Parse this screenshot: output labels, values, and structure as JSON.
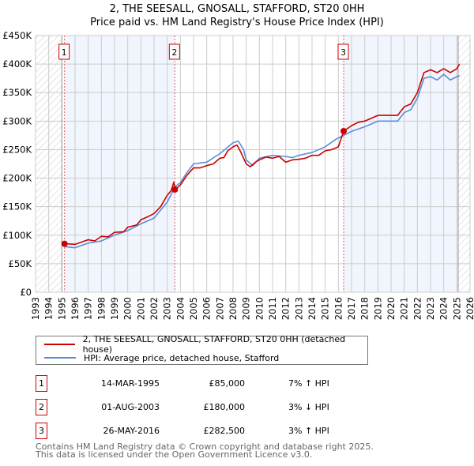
{
  "chart_data": {
    "type": "line",
    "title": "2, THE SEESALL, GNOSALL, STAFFORD, ST20 0HH",
    "subtitle": "Price paid vs. HM Land Registry's House Price Index (HPI)",
    "xlim": [
      1993,
      2026
    ],
    "ylim": [
      0,
      450000
    ],
    "x_ticks": [
      "1993",
      "1994",
      "1995",
      "1996",
      "1997",
      "1998",
      "1999",
      "2000",
      "2001",
      "2002",
      "2003",
      "2004",
      "2005",
      "2006",
      "2007",
      "2008",
      "2009",
      "2010",
      "2011",
      "2012",
      "2013",
      "2014",
      "2015",
      "2016",
      "2017",
      "2018",
      "2019",
      "2020",
      "2021",
      "2022",
      "2023",
      "2024",
      "2025",
      "2026"
    ],
    "y_ticks": [
      {
        "v": 0,
        "label": "£0"
      },
      {
        "v": 50000,
        "label": "£50K"
      },
      {
        "v": 100000,
        "label": "£100K"
      },
      {
        "v": 150000,
        "label": "£150K"
      },
      {
        "v": 200000,
        "label": "£200K"
      },
      {
        "v": 250000,
        "label": "£250K"
      },
      {
        "v": 300000,
        "label": "£300K"
      },
      {
        "v": 350000,
        "label": "£350K"
      },
      {
        "v": 400000,
        "label": "£400K"
      },
      {
        "v": 450000,
        "label": "£450K"
      }
    ],
    "grid": true,
    "data_range": [
      1995.0,
      2025.1
    ],
    "series": [
      {
        "name": "2, THE SEESALL, GNOSALL, STAFFORD, ST20 0HH (detached house)",
        "color": "#cc0000",
        "points": [
          [
            1995.2,
            85000
          ],
          [
            1996,
            84000
          ],
          [
            1997,
            92000
          ],
          [
            1997.5,
            90000
          ],
          [
            1998,
            98000
          ],
          [
            1998.5,
            97000
          ],
          [
            1999,
            105000
          ],
          [
            1999.7,
            106000
          ],
          [
            2000,
            114000
          ],
          [
            2000.7,
            118000
          ],
          [
            2001,
            127000
          ],
          [
            2001.5,
            132000
          ],
          [
            2002,
            138000
          ],
          [
            2002.5,
            150000
          ],
          [
            2003,
            170000
          ],
          [
            2003.3,
            178000
          ],
          [
            2003.5,
            193000
          ],
          [
            2003.6,
            180000
          ],
          [
            2004,
            188000
          ],
          [
            2004.5,
            205000
          ],
          [
            2005,
            218000
          ],
          [
            2005.5,
            218000
          ],
          [
            2006,
            222000
          ],
          [
            2006.5,
            225000
          ],
          [
            2007,
            235000
          ],
          [
            2007.3,
            236000
          ],
          [
            2007.6,
            248000
          ],
          [
            2008,
            255000
          ],
          [
            2008.3,
            258000
          ],
          [
            2008.6,
            245000
          ],
          [
            2009,
            225000
          ],
          [
            2009.3,
            220000
          ],
          [
            2009.7,
            228000
          ],
          [
            2010,
            232000
          ],
          [
            2010.5,
            237000
          ],
          [
            2011,
            235000
          ],
          [
            2011.5,
            238000
          ],
          [
            2012,
            228000
          ],
          [
            2012.5,
            232000
          ],
          [
            2013,
            233000
          ],
          [
            2013.5,
            235000
          ],
          [
            2014,
            240000
          ],
          [
            2014.5,
            240000
          ],
          [
            2015,
            248000
          ],
          [
            2015.5,
            250000
          ],
          [
            2016,
            255000
          ],
          [
            2016.4,
            282500
          ],
          [
            2017,
            292000
          ],
          [
            2017.5,
            298000
          ],
          [
            2018,
            300000
          ],
          [
            2018.5,
            305000
          ],
          [
            2019,
            310000
          ],
          [
            2019.5,
            310000
          ],
          [
            2020,
            310000
          ],
          [
            2020.5,
            310000
          ],
          [
            2021,
            325000
          ],
          [
            2021.5,
            330000
          ],
          [
            2022,
            350000
          ],
          [
            2022.5,
            385000
          ],
          [
            2023,
            390000
          ],
          [
            2023.5,
            385000
          ],
          [
            2024,
            392000
          ],
          [
            2024.5,
            385000
          ],
          [
            2025,
            392000
          ],
          [
            2025.2,
            400000
          ]
        ]
      },
      {
        "name": "HPI: Average price, detached house, Stafford",
        "color": "#5b8fd4",
        "points": [
          [
            1995.2,
            80000
          ],
          [
            1996,
            78000
          ],
          [
            1997,
            86000
          ],
          [
            1998,
            90000
          ],
          [
            1999,
            100000
          ],
          [
            2000,
            108000
          ],
          [
            2001,
            120000
          ],
          [
            2002,
            130000
          ],
          [
            2003,
            158000
          ],
          [
            2003.6,
            185000
          ],
          [
            2004,
            192000
          ],
          [
            2004.5,
            210000
          ],
          [
            2005,
            225000
          ],
          [
            2006,
            228000
          ],
          [
            2007,
            243000
          ],
          [
            2008,
            262000
          ],
          [
            2008.4,
            265000
          ],
          [
            2008.8,
            250000
          ],
          [
            2009,
            232000
          ],
          [
            2009.5,
            222000
          ],
          [
            2010,
            235000
          ],
          [
            2011,
            240000
          ],
          [
            2012,
            238000
          ],
          [
            2012.5,
            236000
          ],
          [
            2013,
            240000
          ],
          [
            2014,
            245000
          ],
          [
            2015,
            255000
          ],
          [
            2015.8,
            268000
          ],
          [
            2016.4,
            275000
          ],
          [
            2017,
            282000
          ],
          [
            2018,
            290000
          ],
          [
            2019,
            300000
          ],
          [
            2020,
            300000
          ],
          [
            2020.5,
            300000
          ],
          [
            2021,
            315000
          ],
          [
            2021.5,
            320000
          ],
          [
            2022,
            340000
          ],
          [
            2022.5,
            375000
          ],
          [
            2023,
            378000
          ],
          [
            2023.5,
            372000
          ],
          [
            2024,
            382000
          ],
          [
            2024.5,
            372000
          ],
          [
            2025,
            378000
          ],
          [
            2025.2,
            380000
          ]
        ]
      }
    ],
    "sales": [
      {
        "num": "1",
        "x": 1995.2,
        "date": "14-MAR-1995",
        "price": "£85,000",
        "value": 85000,
        "hpi": "7% ↑ HPI"
      },
      {
        "num": "2",
        "x": 2003.58,
        "date": "01-AUG-2003",
        "price": "£180,000",
        "value": 180000,
        "hpi": "3% ↓ HPI"
      },
      {
        "num": "3",
        "x": 2016.4,
        "date": "26-MAY-2016",
        "price": "£282,500",
        "value": 282500,
        "hpi": "3% ↑ HPI"
      }
    ],
    "legend_position": "below"
  },
  "footer": {
    "line1": "Contains HM Land Registry data © Crown copyright and database right 2025.",
    "line2": "This data is licensed under the Open Government Licence v3.0."
  }
}
